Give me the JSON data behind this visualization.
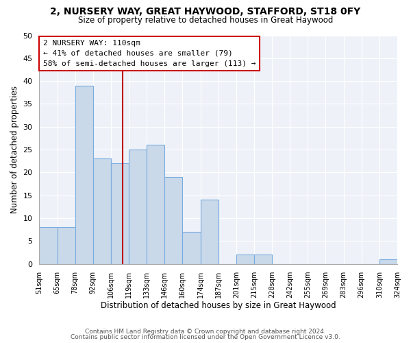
{
  "title": "2, NURSERY WAY, GREAT HAYWOOD, STAFFORD, ST18 0FY",
  "subtitle": "Size of property relative to detached houses in Great Haywood",
  "xlabel": "Distribution of detached houses by size in Great Haywood",
  "ylabel": "Number of detached properties",
  "bar_heights": [
    8,
    8,
    39,
    23,
    22,
    25,
    26,
    19,
    7,
    14,
    0,
    2,
    2,
    0,
    0,
    0,
    0,
    0,
    0,
    1
  ],
  "tick_labels": [
    "51sqm",
    "65sqm",
    "78sqm",
    "92sqm",
    "106sqm",
    "119sqm",
    "133sqm",
    "146sqm",
    "160sqm",
    "174sqm",
    "187sqm",
    "201sqm",
    "215sqm",
    "228sqm",
    "242sqm",
    "255sqm",
    "269sqm",
    "283sqm",
    "296sqm",
    "310sqm",
    "324sqm"
  ],
  "bar_color": "#c9d9ea",
  "bar_edge_color": "#7aace0",
  "ylim": [
    0,
    50
  ],
  "yticks": [
    0,
    5,
    10,
    15,
    20,
    25,
    30,
    35,
    40,
    45,
    50
  ],
  "property_line_bin": 4.67,
  "property_line_color": "#c00000",
  "annotation_title": "2 NURSERY WAY: 110sqm",
  "annotation_line1": "← 41% of detached houses are smaller (79)",
  "annotation_line2": "58% of semi-detached houses are larger (113) →",
  "annotation_box_color": "#ffffff",
  "annotation_box_edge_color": "#cc0000",
  "footer1": "Contains HM Land Registry data © Crown copyright and database right 2024.",
  "footer2": "Contains public sector information licensed under the Open Government Licence v3.0.",
  "background_color": "#ffffff",
  "plot_bg_color": "#eef2f8",
  "grid_color": "#ffffff"
}
